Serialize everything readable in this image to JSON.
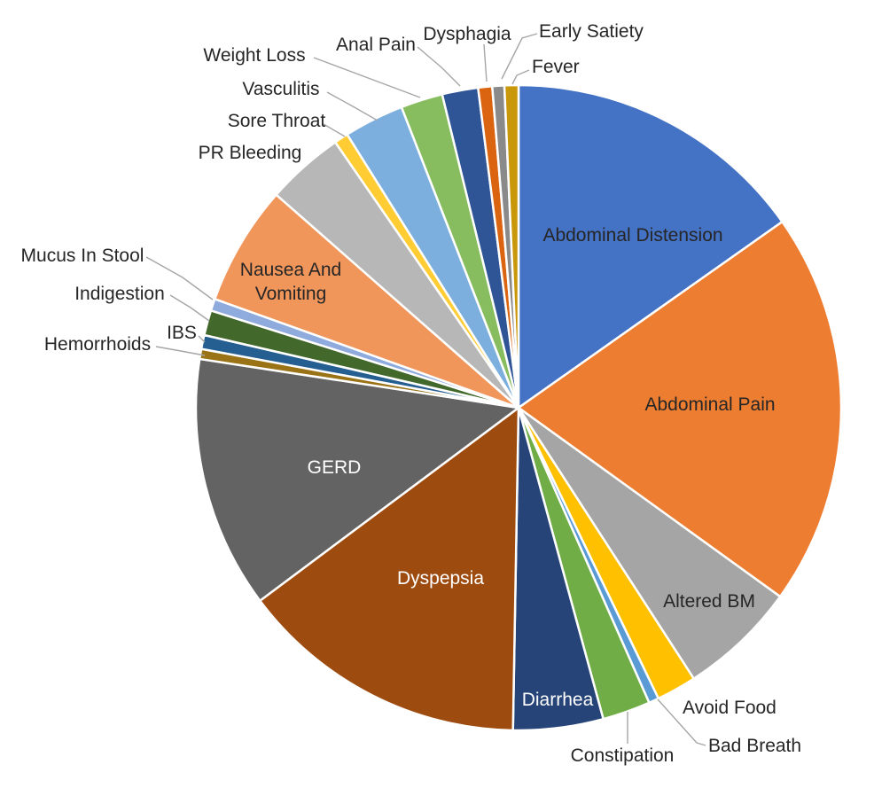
{
  "figure": {
    "background": "#FFFFFF",
    "title": ""
  },
  "chart_data": {
    "type": "pie",
    "title": "",
    "legend": "none",
    "rotation_deg": 0,
    "direction": "clockwise",
    "units": "percent (estimated from slice angles)",
    "slice_border_color": "#FFFFFF",
    "leader_line_color": "#A6A6A6",
    "slices": [
      {
        "label": "Abdominal Distension",
        "value": 15.2,
        "color": "#4472C4",
        "label_placement": "inside",
        "label_color": "#262626"
      },
      {
        "label": "Abdominal Pain",
        "value": 19.7,
        "color": "#ED7D31",
        "label_placement": "inside",
        "label_color": "#262626"
      },
      {
        "label": "Altered BM",
        "value": 5.9,
        "color": "#A5A5A5",
        "label_placement": "inside",
        "label_color": "#262626"
      },
      {
        "label": "Avoid Food",
        "value": 2.0,
        "color": "#FFC000",
        "label_placement": "outside",
        "label_color": "#262626"
      },
      {
        "label": "Bad Breath",
        "value": 0.5,
        "color": "#5B9BD5",
        "label_placement": "outside",
        "label_color": "#262626"
      },
      {
        "label": "Constipation",
        "value": 2.4,
        "color": "#70AD47",
        "label_placement": "outside",
        "label_color": "#262626"
      },
      {
        "label": "Diarrhea",
        "value": 4.5,
        "color": "#264478",
        "label_placement": "inside",
        "label_color": "#FFFFFF"
      },
      {
        "label": "Dyspepsia",
        "value": 14.5,
        "color": "#9E4B10",
        "label_placement": "inside",
        "label_color": "#FFFFFF"
      },
      {
        "label": "GERD",
        "value": 12.6,
        "color": "#636363",
        "label_placement": "inside",
        "label_color": "#FFFFFF"
      },
      {
        "label": "Hemorrhoids",
        "value": 0.5,
        "color": "#997316",
        "label_placement": "outside",
        "label_color": "#262626"
      },
      {
        "label": "IBS",
        "value": 0.7,
        "color": "#255E91",
        "label_placement": "outside",
        "label_color": "#262626"
      },
      {
        "label": "Indigestion",
        "value": 1.25,
        "color": "#43682B",
        "label_placement": "outside",
        "label_color": "#262626"
      },
      {
        "label": "Mucus In Stool",
        "value": 0.6,
        "color": "#8FAADC",
        "label_placement": "outside",
        "label_color": "#262626"
      },
      {
        "label": "Nausea And Vomiting",
        "value": 6.0,
        "color": "#F0965B",
        "label_placement": "inside",
        "label_color": "#262626"
      },
      {
        "label": "PR Bleeding",
        "value": 3.9,
        "color": "#B7B7B7",
        "label_placement": "outside",
        "label_color": "#262626"
      },
      {
        "label": "Sore Throat",
        "value": 0.7,
        "color": "#FFCD33",
        "label_placement": "outside",
        "label_color": "#262626"
      },
      {
        "label": "Vasculitis",
        "value": 3.0,
        "color": "#7CAFDD",
        "label_placement": "outside",
        "label_color": "#262626"
      },
      {
        "label": "Weight Loss",
        "value": 2.1,
        "color": "#88BD5F",
        "label_placement": "outside",
        "label_color": "#262626"
      },
      {
        "label": "Anal Pain",
        "value": 1.8,
        "color": "#2F5597",
        "label_placement": "outside",
        "label_color": "#262626"
      },
      {
        "label": "Dysphagia",
        "value": 0.7,
        "color": "#DB6410",
        "label_placement": "outside",
        "label_color": "#262626"
      },
      {
        "label": "Early Satiety",
        "value": 0.6,
        "color": "#8A8A8A",
        "label_placement": "outside",
        "label_color": "#262626"
      },
      {
        "label": "Fever",
        "value": 0.7,
        "color": "#C9980A",
        "label_placement": "outside",
        "label_color": "#262626"
      }
    ]
  }
}
